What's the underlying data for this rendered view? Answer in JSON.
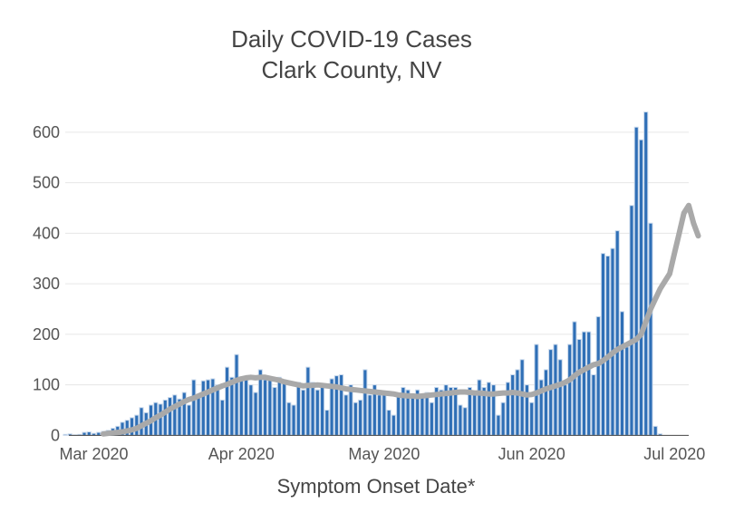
{
  "chart_data": {
    "type": "bar",
    "title_lines": [
      "Daily COVID-19 Cases",
      "Clark County, NV"
    ],
    "xlabel": "Symptom Onset Date*",
    "ylabel": "",
    "x_start": "2020-02-24",
    "x_tick_labels": [
      {
        "date": "2020-03-01",
        "label": "Mar 2020"
      },
      {
        "date": "2020-04-01",
        "label": "Apr 2020"
      },
      {
        "date": "2020-05-01",
        "label": "May 2020"
      },
      {
        "date": "2020-06-01",
        "label": "Jun 2020"
      },
      {
        "date": "2020-07-01",
        "label": "Jul 2020"
      }
    ],
    "y_ticks": [
      0,
      100,
      200,
      300,
      400,
      500,
      600
    ],
    "xlim": [
      "2020-02-24",
      "2020-07-04"
    ],
    "ylim": [
      -10,
      650
    ],
    "grid": true,
    "series": [
      {
        "name": "",
        "kind": "bar",
        "values": [
          2,
          3,
          1,
          2,
          6,
          7,
          4,
          6,
          8,
          10,
          14,
          18,
          26,
          30,
          35,
          40,
          55,
          45,
          60,
          65,
          62,
          70,
          75,
          80,
          72,
          85,
          60,
          110,
          80,
          108,
          110,
          112,
          100,
          70,
          135,
          115,
          160,
          112,
          115,
          100,
          85,
          130,
          110,
          115,
          95,
          115,
          110,
          65,
          60,
          105,
          90,
          135,
          105,
          90,
          95,
          50,
          112,
          118,
          120,
          80,
          100,
          65,
          70,
          130,
          80,
          100,
          80,
          85,
          50,
          40,
          80,
          95,
          90,
          80,
          90,
          80,
          85,
          65,
          95,
          90,
          100,
          95,
          95,
          60,
          55,
          95,
          80,
          110,
          95,
          105,
          100,
          40,
          65,
          105,
          120,
          130,
          150,
          100,
          65,
          180,
          110,
          130,
          170,
          180,
          150,
          100,
          180,
          225,
          190,
          205,
          205,
          120,
          235,
          360,
          355,
          370,
          405,
          245,
          175,
          455,
          610,
          585,
          640,
          420,
          18,
          3
        ],
        "color": "#2f6fb6"
      },
      {
        "name": "",
        "kind": "line",
        "x_start_offset": 8,
        "values": [
          3,
          4,
          5,
          6,
          7,
          9,
          11,
          14,
          19,
          24,
          29,
          35,
          40,
          46,
          52,
          57,
          62,
          67,
          71,
          74,
          78,
          82,
          86,
          90,
          94,
          98,
          101,
          105,
          109,
          112,
          114,
          115,
          114,
          115,
          115,
          113,
          111,
          109,
          106,
          104,
          102,
          100,
          98,
          99,
          99,
          100,
          99,
          98,
          97,
          96,
          94,
          92,
          91,
          90,
          89,
          88,
          87,
          86,
          85,
          84,
          83,
          82,
          80,
          79,
          78,
          78,
          77,
          78,
          79,
          80,
          81,
          82,
          83,
          84,
          85,
          86,
          86,
          85,
          84,
          84,
          83,
          82,
          82,
          83,
          84,
          84,
          85,
          84,
          82,
          80,
          81,
          84,
          88,
          92,
          95,
          98,
          101,
          105,
          110,
          118,
          125,
          130,
          135,
          140,
          142,
          148,
          155,
          163,
          170,
          175,
          180,
          185,
          190,
          200,
          225,
          250,
          270,
          290,
          305,
          320,
          360,
          400,
          440,
          455,
          420,
          395
        ],
        "color": "#a9a9a9"
      }
    ]
  }
}
